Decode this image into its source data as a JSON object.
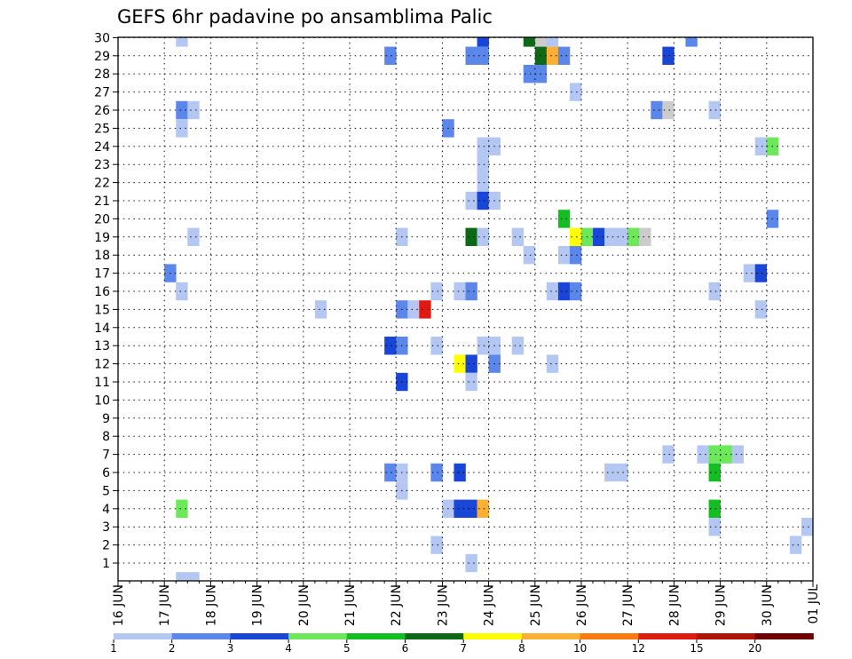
{
  "chart_data": {
    "type": "heatmap",
    "title": "GEFS 6hr padavine po ansamblima Palic",
    "y_ticks": [
      "1",
      "2",
      "3",
      "4",
      "5",
      "6",
      "7",
      "8",
      "9",
      "10",
      "11",
      "12",
      "13",
      "14",
      "15",
      "16",
      "17",
      "18",
      "19",
      "20",
      "21",
      "22",
      "23",
      "24",
      "25",
      "26",
      "27",
      "28",
      "29",
      "30"
    ],
    "x_ticks": [
      "16 JUN",
      "17 JUN",
      "18 JUN",
      "19 JUN",
      "20 JUN",
      "21 JUN",
      "22 JUN",
      "23 JUN",
      "24 JUN",
      "25 JUN",
      "26 JUN",
      "27 JUN",
      "28 JUN",
      "29 JUN",
      "30 JUN",
      "01 JUL"
    ],
    "x_range": [
      "16 JUN 00Z",
      "01 JUL 00Z"
    ],
    "y_range": [
      1,
      30
    ],
    "grid": true,
    "legend_position": "bottom",
    "color_scale": {
      "bounds": [
        "1",
        "2",
        "3",
        "4",
        "5",
        "6",
        "7",
        "8",
        "10",
        "12",
        "15",
        "20"
      ],
      "colors": [
        "#b4c6f2",
        "#5b86ea",
        "#1a46d8",
        "#6ce85a",
        "#13be20",
        "#0c6a16",
        "#ffff00",
        "#fbb035",
        "#fb7a10",
        "#df1a10",
        "#b01408",
        "#700000"
      ]
    },
    "cells": [
      {
        "member": 30,
        "x": "17 JUN 06Z",
        "level": 1
      },
      {
        "member": 30,
        "x": "23 JUN 18Z",
        "level": 3
      },
      {
        "member": 30,
        "x": "24 JUN 18Z",
        "level": 6
      },
      {
        "member": 30,
        "x": "25 JUN 00Z",
        "level": 9
      },
      {
        "member": 30,
        "x": "25 JUN 06Z",
        "level": 1
      },
      {
        "member": 30,
        "x": "28 JUN 06Z",
        "level": 2
      },
      {
        "member": 29,
        "x": "21 JUN 18Z",
        "level": 2
      },
      {
        "member": 29,
        "x": "23 JUN 12Z",
        "level": 2
      },
      {
        "member": 29,
        "x": "23 JUN 18Z",
        "level": 2
      },
      {
        "member": 29,
        "x": "25 JUN 00Z",
        "level": 6
      },
      {
        "member": 29,
        "x": "25 JUN 06Z",
        "level": 8
      },
      {
        "member": 29,
        "x": "25 JUN 12Z",
        "level": 2
      },
      {
        "member": 29,
        "x": "27 JUN 18Z",
        "level": 3
      },
      {
        "member": 28,
        "x": "24 JUN 18Z",
        "level": 2
      },
      {
        "member": 28,
        "x": "25 JUN 00Z",
        "level": 2
      },
      {
        "member": 27,
        "x": "25 JUN 18Z",
        "level": 1
      },
      {
        "member": 26,
        "x": "17 JUN 06Z",
        "level": 2
      },
      {
        "member": 26,
        "x": "17 JUN 12Z",
        "level": 1
      },
      {
        "member": 26,
        "x": "27 JUN 12Z",
        "level": 2
      },
      {
        "member": 26,
        "x": "27 JUN 18Z",
        "level": 9
      },
      {
        "member": 26,
        "x": "28 JUN 18Z",
        "level": 1
      },
      {
        "member": 25,
        "x": "17 JUN 06Z",
        "level": 1
      },
      {
        "member": 25,
        "x": "23 JUN 00Z",
        "level": 2
      },
      {
        "member": 24,
        "x": "23 JUN 18Z",
        "level": 1
      },
      {
        "member": 24,
        "x": "24 JUN 00Z",
        "level": 1
      },
      {
        "member": 24,
        "x": "29 JUN 18Z",
        "level": 1
      },
      {
        "member": 24,
        "x": "30 JUN 00Z",
        "level": 4
      },
      {
        "member": 23,
        "x": "23 JUN 18Z",
        "level": 1
      },
      {
        "member": 22,
        "x": "23 JUN 18Z",
        "level": 1
      },
      {
        "member": 21,
        "x": "23 JUN 12Z",
        "level": 1
      },
      {
        "member": 21,
        "x": "23 JUN 18Z",
        "level": 3
      },
      {
        "member": 21,
        "x": "24 JUN 00Z",
        "level": 1
      },
      {
        "member": 20,
        "x": "25 JUN 12Z",
        "level": 5
      },
      {
        "member": 20,
        "x": "30 JUN 00Z",
        "level": 2
      },
      {
        "member": 19,
        "x": "17 JUN 12Z",
        "level": 1
      },
      {
        "member": 19,
        "x": "22 JUN 00Z",
        "level": 1
      },
      {
        "member": 19,
        "x": "23 JUN 12Z",
        "level": 6
      },
      {
        "member": 19,
        "x": "23 JUN 18Z",
        "level": 1
      },
      {
        "member": 19,
        "x": "24 JUN 12Z",
        "level": 1
      },
      {
        "member": 19,
        "x": "25 JUN 18Z",
        "level": 7
      },
      {
        "member": 19,
        "x": "26 JUN 00Z",
        "level": 4
      },
      {
        "member": 19,
        "x": "26 JUN 06Z",
        "level": 3
      },
      {
        "member": 19,
        "x": "26 JUN 12Z",
        "level": 1
      },
      {
        "member": 19,
        "x": "26 JUN 18Z",
        "level": 1
      },
      {
        "member": 19,
        "x": "27 JUN 00Z",
        "level": 4
      },
      {
        "member": 19,
        "x": "27 JUN 06Z",
        "level": 9
      },
      {
        "member": 18,
        "x": "24 JUN 18Z",
        "level": 1
      },
      {
        "member": 18,
        "x": "25 JUN 12Z",
        "level": 1
      },
      {
        "member": 18,
        "x": "25 JUN 18Z",
        "level": 2
      },
      {
        "member": 17,
        "x": "17 JUN 00Z",
        "level": 2
      },
      {
        "member": 17,
        "x": "29 JUN 12Z",
        "level": 1
      },
      {
        "member": 17,
        "x": "29 JUN 18Z",
        "level": 3
      },
      {
        "member": 16,
        "x": "17 JUN 06Z",
        "level": 1
      },
      {
        "member": 16,
        "x": "22 JUN 18Z",
        "level": 1
      },
      {
        "member": 16,
        "x": "23 JUN 06Z",
        "level": 1
      },
      {
        "member": 16,
        "x": "23 JUN 12Z",
        "level": 2
      },
      {
        "member": 16,
        "x": "25 JUN 06Z",
        "level": 1
      },
      {
        "member": 16,
        "x": "25 JUN 12Z",
        "level": 3
      },
      {
        "member": 16,
        "x": "25 JUN 18Z",
        "level": 2
      },
      {
        "member": 16,
        "x": "28 JUN 18Z",
        "level": 1
      },
      {
        "member": 15,
        "x": "20 JUN 06Z",
        "level": 1
      },
      {
        "member": 15,
        "x": "22 JUN 00Z",
        "level": 2
      },
      {
        "member": 15,
        "x": "22 JUN 06Z",
        "level": 1
      },
      {
        "member": 15,
        "x": "22 JUN 12Z",
        "level": 12
      },
      {
        "member": 15,
        "x": "29 JUN 18Z",
        "level": 1
      },
      {
        "member": 13,
        "x": "21 JUN 18Z",
        "level": 3
      },
      {
        "member": 13,
        "x": "22 JUN 00Z",
        "level": 2
      },
      {
        "member": 13,
        "x": "22 JUN 18Z",
        "level": 1
      },
      {
        "member": 13,
        "x": "23 JUN 18Z",
        "level": 1
      },
      {
        "member": 13,
        "x": "24 JUN 00Z",
        "level": 1
      },
      {
        "member": 13,
        "x": "24 JUN 12Z",
        "level": 1
      },
      {
        "member": 12,
        "x": "23 JUN 06Z",
        "level": 7
      },
      {
        "member": 12,
        "x": "23 JUN 12Z",
        "level": 3
      },
      {
        "member": 12,
        "x": "24 JUN 00Z",
        "level": 2
      },
      {
        "member": 12,
        "x": "25 JUN 06Z",
        "level": 1
      },
      {
        "member": 11,
        "x": "22 JUN 00Z",
        "level": 3
      },
      {
        "member": 11,
        "x": "23 JUN 12Z",
        "level": 1
      },
      {
        "member": 7,
        "x": "27 JUN 18Z",
        "level": 1
      },
      {
        "member": 7,
        "x": "28 JUN 12Z",
        "level": 1
      },
      {
        "member": 7,
        "x": "28 JUN 18Z",
        "level": 4
      },
      {
        "member": 7,
        "x": "29 JUN 00Z",
        "level": 4
      },
      {
        "member": 7,
        "x": "29 JUN 06Z",
        "level": 1
      },
      {
        "member": 6,
        "x": "21 JUN 18Z",
        "level": 2
      },
      {
        "member": 6,
        "x": "22 JUN 00Z",
        "level": 1
      },
      {
        "member": 6,
        "x": "22 JUN 18Z",
        "level": 2
      },
      {
        "member": 6,
        "x": "23 JUN 06Z",
        "level": 3
      },
      {
        "member": 6,
        "x": "26 JUN 12Z",
        "level": 1
      },
      {
        "member": 6,
        "x": "26 JUN 18Z",
        "level": 1
      },
      {
        "member": 6,
        "x": "28 JUN 18Z",
        "level": 5
      },
      {
        "member": 5,
        "x": "22 JUN 00Z",
        "level": 1
      },
      {
        "member": 4,
        "x": "17 JUN 06Z",
        "level": 4
      },
      {
        "member": 4,
        "x": "23 JUN 00Z",
        "level": 1
      },
      {
        "member": 4,
        "x": "23 JUN 06Z",
        "level": 3
      },
      {
        "member": 4,
        "x": "23 JUN 12Z",
        "level": 3
      },
      {
        "member": 4,
        "x": "23 JUN 18Z",
        "level": 8
      },
      {
        "member": 4,
        "x": "28 JUN 18Z",
        "level": 5
      },
      {
        "member": 3,
        "x": "28 JUN 18Z",
        "level": 1
      },
      {
        "member": 3,
        "x": "30 JUN 18Z",
        "level": 1
      },
      {
        "member": 2,
        "x": "22 JUN 18Z",
        "level": 1
      },
      {
        "member": 2,
        "x": "30 JUN 12Z",
        "level": 1
      },
      {
        "member": 1,
        "x": "23 JUN 12Z",
        "level": 1
      },
      {
        "member": 0,
        "x": "17 JUN 06Z",
        "level": 1
      },
      {
        "member": 0,
        "x": "17 JUN 12Z",
        "level": 1
      }
    ]
  }
}
